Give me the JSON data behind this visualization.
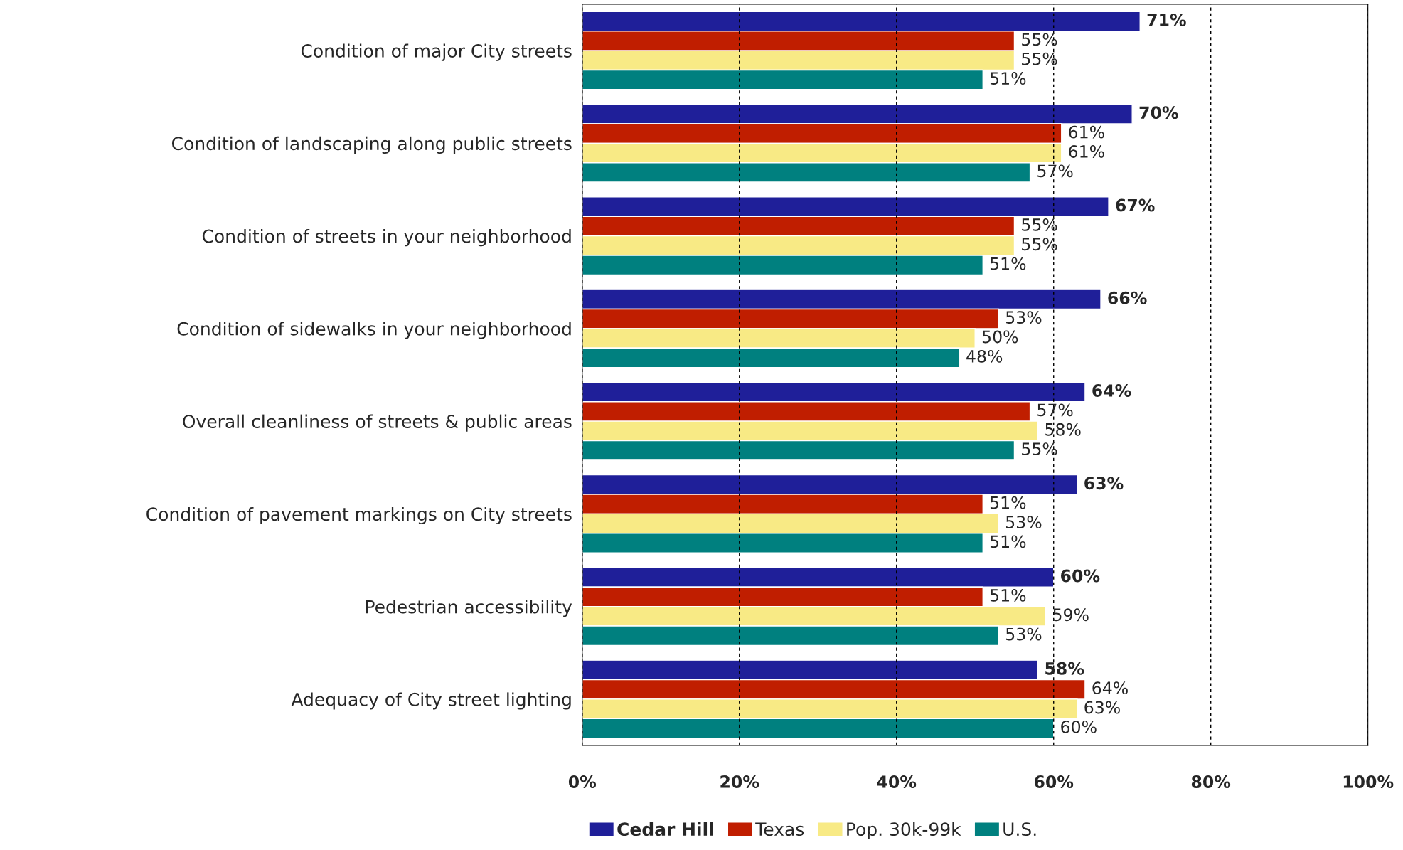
{
  "chart_data": {
    "type": "bar",
    "orientation": "horizontal",
    "categories": [
      "Condition of major City streets",
      "Condition of landscaping along public streets",
      "Condition of streets in your neighborhood",
      "Condition of sidewalks in your neighborhood",
      "Overall cleanliness of streets & public areas",
      "Condition of pavement markings on City streets",
      "Pedestrian accessibility",
      "Adequacy of City street lighting"
    ],
    "series": [
      {
        "name": "Cedar Hill",
        "color": "#1f1f99",
        "values": [
          71,
          70,
          67,
          66,
          64,
          63,
          60,
          58
        ],
        "value_labels": [
          "71%",
          "70%",
          "67%",
          "66%",
          "64%",
          "63%",
          "60%",
          "58%"
        ]
      },
      {
        "name": "Texas",
        "color": "#c01e00",
        "values": [
          55,
          61,
          55,
          53,
          57,
          51,
          51,
          64
        ],
        "value_labels": [
          "55%",
          "61%",
          "55%",
          "53%",
          "57%",
          "51%",
          "51%",
          "64%"
        ]
      },
      {
        "name": "Pop. 30k-99k",
        "color": "#f8ea85",
        "values": [
          55,
          61,
          55,
          50,
          58,
          53,
          59,
          63
        ],
        "value_labels": [
          "55%",
          "61%",
          "55%",
          "50%",
          "58%",
          "53%",
          "59%",
          "63%"
        ]
      },
      {
        "name": "U.S.",
        "color": "#00807f",
        "values": [
          51,
          57,
          51,
          48,
          55,
          51,
          53,
          60
        ],
        "value_labels": [
          "51%",
          "57%",
          "51%",
          "48%",
          "55%",
          "51%",
          "53%",
          "60%"
        ]
      }
    ],
    "xlim": [
      0,
      100
    ],
    "xticks": [
      {
        "value": 0,
        "label": "0%"
      },
      {
        "value": 20,
        "label": "20%"
      },
      {
        "value": 40,
        "label": "40%"
      },
      {
        "value": 60,
        "label": "60%"
      },
      {
        "value": 80,
        "label": "80%"
      },
      {
        "value": 100,
        "label": "100%"
      }
    ],
    "grid": "x",
    "legend": "bottom"
  }
}
